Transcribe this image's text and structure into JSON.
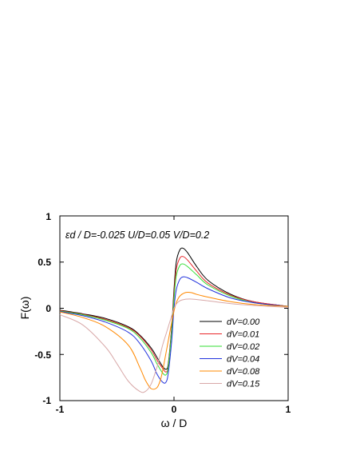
{
  "chart_data": {
    "type": "line",
    "xlabel": "ω / D",
    "ylabel": "F(ω)",
    "annotation": "εd / D=-0.025   U/D=0.05   V/D=0.2",
    "xlim": [
      -1,
      1
    ],
    "ylim": [
      -1,
      1
    ],
    "x_ticks": [
      "-1",
      "0",
      "1"
    ],
    "y_ticks": [
      "1",
      "0.5",
      "0",
      "-0.5",
      "-1"
    ],
    "grid": false,
    "legend_position": "bottom-right",
    "series": [
      {
        "name": "dV=0.00",
        "color": "#000000",
        "x": [
          -1.0,
          -0.8,
          -0.6,
          -0.4,
          -0.3,
          -0.2,
          -0.15,
          -0.1,
          -0.07,
          -0.05,
          -0.02,
          0.0,
          0.02,
          0.05,
          0.08,
          0.12,
          0.2,
          0.3,
          0.5,
          0.7,
          1.0
        ],
        "y": [
          -0.02,
          -0.06,
          -0.11,
          -0.2,
          -0.29,
          -0.43,
          -0.53,
          -0.63,
          -0.66,
          -0.6,
          -0.2,
          0.2,
          0.5,
          0.63,
          0.65,
          0.6,
          0.45,
          0.3,
          0.15,
          0.07,
          0.02
        ]
      },
      {
        "name": "dV=0.01",
        "color": "#e8262a",
        "x": [
          -1.0,
          -0.8,
          -0.6,
          -0.4,
          -0.3,
          -0.2,
          -0.15,
          -0.1,
          -0.07,
          -0.05,
          -0.02,
          0.0,
          0.02,
          0.05,
          0.08,
          0.12,
          0.2,
          0.3,
          0.5,
          0.7,
          1.0
        ],
        "y": [
          -0.025,
          -0.065,
          -0.12,
          -0.21,
          -0.3,
          -0.45,
          -0.56,
          -0.65,
          -0.69,
          -0.62,
          -0.22,
          0.15,
          0.42,
          0.54,
          0.56,
          0.52,
          0.4,
          0.27,
          0.14,
          0.07,
          0.02
        ]
      },
      {
        "name": "dV=0.02",
        "color": "#33dd33",
        "x": [
          -1.0,
          -0.8,
          -0.6,
          -0.4,
          -0.3,
          -0.2,
          -0.15,
          -0.1,
          -0.07,
          -0.05,
          -0.02,
          0.0,
          0.02,
          0.05,
          0.08,
          0.12,
          0.2,
          0.3,
          0.5,
          0.7,
          1.0
        ],
        "y": [
          -0.03,
          -0.07,
          -0.13,
          -0.22,
          -0.32,
          -0.48,
          -0.6,
          -0.7,
          -0.72,
          -0.63,
          -0.25,
          0.1,
          0.35,
          0.46,
          0.48,
          0.45,
          0.36,
          0.25,
          0.13,
          0.06,
          0.02
        ]
      },
      {
        "name": "dV=0.04",
        "color": "#2233dd",
        "x": [
          -1.0,
          -0.8,
          -0.6,
          -0.4,
          -0.3,
          -0.2,
          -0.15,
          -0.1,
          -0.07,
          -0.05,
          -0.02,
          0.0,
          0.02,
          0.05,
          0.08,
          0.12,
          0.2,
          0.3,
          0.5,
          0.7,
          1.0
        ],
        "y": [
          -0.035,
          -0.08,
          -0.15,
          -0.26,
          -0.38,
          -0.57,
          -0.71,
          -0.8,
          -0.8,
          -0.7,
          -0.35,
          0.0,
          0.2,
          0.31,
          0.34,
          0.33,
          0.28,
          0.21,
          0.11,
          0.06,
          0.02
        ]
      },
      {
        "name": "dV=0.08",
        "color": "#ff8800",
        "x": [
          -1.0,
          -0.8,
          -0.6,
          -0.4,
          -0.3,
          -0.25,
          -0.2,
          -0.15,
          -0.12,
          -0.1,
          -0.08,
          -0.05,
          -0.02,
          0.0,
          0.02,
          0.05,
          0.1,
          0.15,
          0.2,
          0.3,
          0.5,
          0.7,
          1.0
        ],
        "y": [
          -0.04,
          -0.1,
          -0.2,
          -0.4,
          -0.64,
          -0.78,
          -0.87,
          -0.86,
          -0.78,
          -0.68,
          -0.55,
          -0.35,
          -0.15,
          -0.03,
          0.06,
          0.13,
          0.17,
          0.17,
          0.15,
          0.12,
          0.07,
          0.04,
          0.02
        ]
      },
      {
        "name": "dV=0.15",
        "color": "#d8a8a8",
        "x": [
          -1.0,
          -0.8,
          -0.6,
          -0.5,
          -0.4,
          -0.3,
          -0.25,
          -0.2,
          -0.15,
          -0.12,
          -0.1,
          -0.07,
          -0.05,
          -0.02,
          0.0,
          0.03,
          0.07,
          0.15,
          0.3,
          0.5,
          0.7,
          1.0
        ],
        "y": [
          -0.07,
          -0.18,
          -0.42,
          -0.6,
          -0.79,
          -0.9,
          -0.9,
          -0.82,
          -0.64,
          -0.5,
          -0.4,
          -0.28,
          -0.2,
          -0.08,
          0.0,
          0.06,
          0.09,
          0.1,
          0.08,
          0.05,
          0.03,
          0.01
        ]
      }
    ]
  }
}
